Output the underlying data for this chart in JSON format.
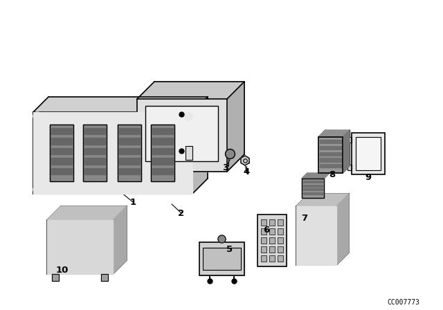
{
  "bg_color": "#ffffff",
  "line_color": "#000000",
  "part_number_text": "CC007773",
  "figsize": [
    6.4,
    4.48
  ],
  "dpi": 100
}
